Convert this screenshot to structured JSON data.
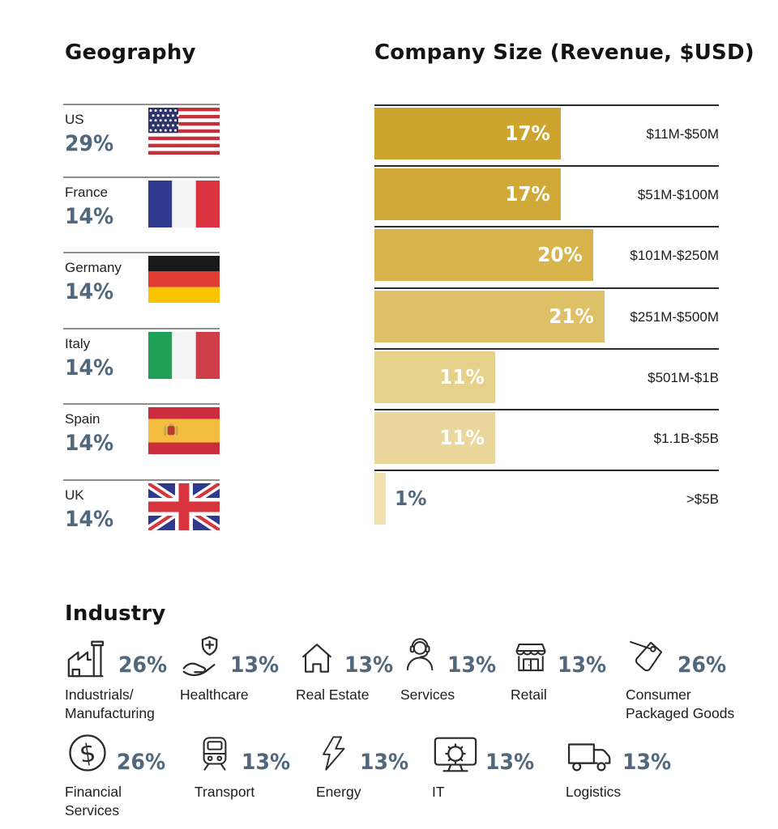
{
  "colors": {
    "percent_text": "#50677C",
    "bar_label_text": "#FFFFFF",
    "dark_line": "#2B2B2B",
    "gray_line": "#8F8F8F",
    "body_text": "#1D1D1F",
    "bar_colors": [
      "#CCA42E",
      "#D0A938",
      "#D8B44C",
      "#DEC166",
      "#E6D18A",
      "#EAD79B",
      "#EEDFAD"
    ]
  },
  "geography": {
    "title": "Geography",
    "items": [
      {
        "country": "US",
        "pct": "29%",
        "flag": "us-flag"
      },
      {
        "country": "France",
        "pct": "14%",
        "flag": "france-flag"
      },
      {
        "country": "Germany",
        "pct": "14%",
        "flag": "germany-flag"
      },
      {
        "country": "Italy",
        "pct": "14%",
        "flag": "italy-flag"
      },
      {
        "country": "Spain",
        "pct": "14%",
        "flag": "spain-flag"
      },
      {
        "country": "UK",
        "pct": "14%",
        "flag": "uk-flag"
      }
    ]
  },
  "company_size": {
    "title": "Company Size (Revenue, $USD)",
    "rows": [
      {
        "pct": "17%",
        "value": 17,
        "range": "$11M-$50M"
      },
      {
        "pct": "17%",
        "value": 17,
        "range": "$51M-$100M"
      },
      {
        "pct": "20%",
        "value": 20,
        "range": "$101M-$250M"
      },
      {
        "pct": "21%",
        "value": 21,
        "range": "$251M-$500M"
      },
      {
        "pct": "11%",
        "value": 11,
        "range": "$501M-$1B"
      },
      {
        "pct": "11%",
        "value": 11,
        "range": "$1.1B-$5B"
      },
      {
        "pct": "1%",
        "value": 1,
        "range": ">$5B"
      }
    ]
  },
  "industry": {
    "title": "Industry",
    "rows": [
      {
        "items": [
          {
            "icon": "factory-icon",
            "pct": "26%",
            "label_lines": [
              "Industrials/",
              "Manufacturing"
            ]
          },
          {
            "icon": "healthcare-icon",
            "pct": "13%",
            "label_lines": [
              "Healthcare"
            ]
          },
          {
            "icon": "house-icon",
            "pct": "13%",
            "label_lines": [
              "Real Estate"
            ]
          },
          {
            "icon": "headset-person-icon",
            "pct": "13%",
            "label_lines": [
              "Services"
            ]
          },
          {
            "icon": "storefront-icon",
            "pct": "13%",
            "label_lines": [
              "Retail"
            ]
          },
          {
            "icon": "price-tag-icon",
            "pct": "26%",
            "label_lines": [
              "Consumer",
              "Packaged Goods"
            ]
          }
        ]
      },
      {
        "items": [
          {
            "icon": "dollar-circle-icon",
            "pct": "26%",
            "label_lines": [
              "Financial",
              "Services"
            ]
          },
          {
            "icon": "train-icon",
            "pct": "13%",
            "label_lines": [
              "Transport"
            ]
          },
          {
            "icon": "lightning-icon",
            "pct": "13%",
            "label_lines": [
              "Energy"
            ]
          },
          {
            "icon": "monitor-gear-icon",
            "pct": "13%",
            "label_lines": [
              "IT"
            ]
          },
          {
            "icon": "truck-icon",
            "pct": "13%",
            "label_lines": [
              "Logistics"
            ]
          }
        ]
      }
    ]
  },
  "chart_data": [
    {
      "type": "bar",
      "title": "Geography",
      "orientation": "horizontal",
      "categories": [
        "US",
        "France",
        "Germany",
        "Italy",
        "Spain",
        "UK"
      ],
      "values": [
        29,
        14,
        14,
        14,
        14,
        14
      ],
      "unit": "%",
      "legend": "none",
      "note": "each category shown with country flag and percentage label"
    },
    {
      "type": "bar",
      "title": "Company Size (Revenue, $USD)",
      "orientation": "horizontal",
      "categories": [
        "$11M-$50M",
        "$51M-$100M",
        "$101M-$250M",
        "$251M-$500M",
        "$501M-$1B",
        "$1.1B-$5B",
        ">$5B"
      ],
      "values": [
        17,
        17,
        20,
        21,
        11,
        11,
        1
      ],
      "unit": "%",
      "xlim": [
        0,
        31
      ],
      "grid": "off",
      "legend": "none",
      "note": "gold bars lighten from top to bottom; value labels inside bars, range labels right-aligned"
    },
    {
      "type": "pictogram",
      "title": "Industry",
      "categories": [
        "Industrials/Manufacturing",
        "Healthcare",
        "Real Estate",
        "Services",
        "Retail",
        "Consumer Packaged Goods",
        "Financial Services",
        "Transport",
        "Energy",
        "IT",
        "Logistics"
      ],
      "values": [
        26,
        13,
        13,
        13,
        13,
        26,
        26,
        13,
        13,
        13,
        13
      ],
      "unit": "%",
      "legend": "none"
    }
  ]
}
